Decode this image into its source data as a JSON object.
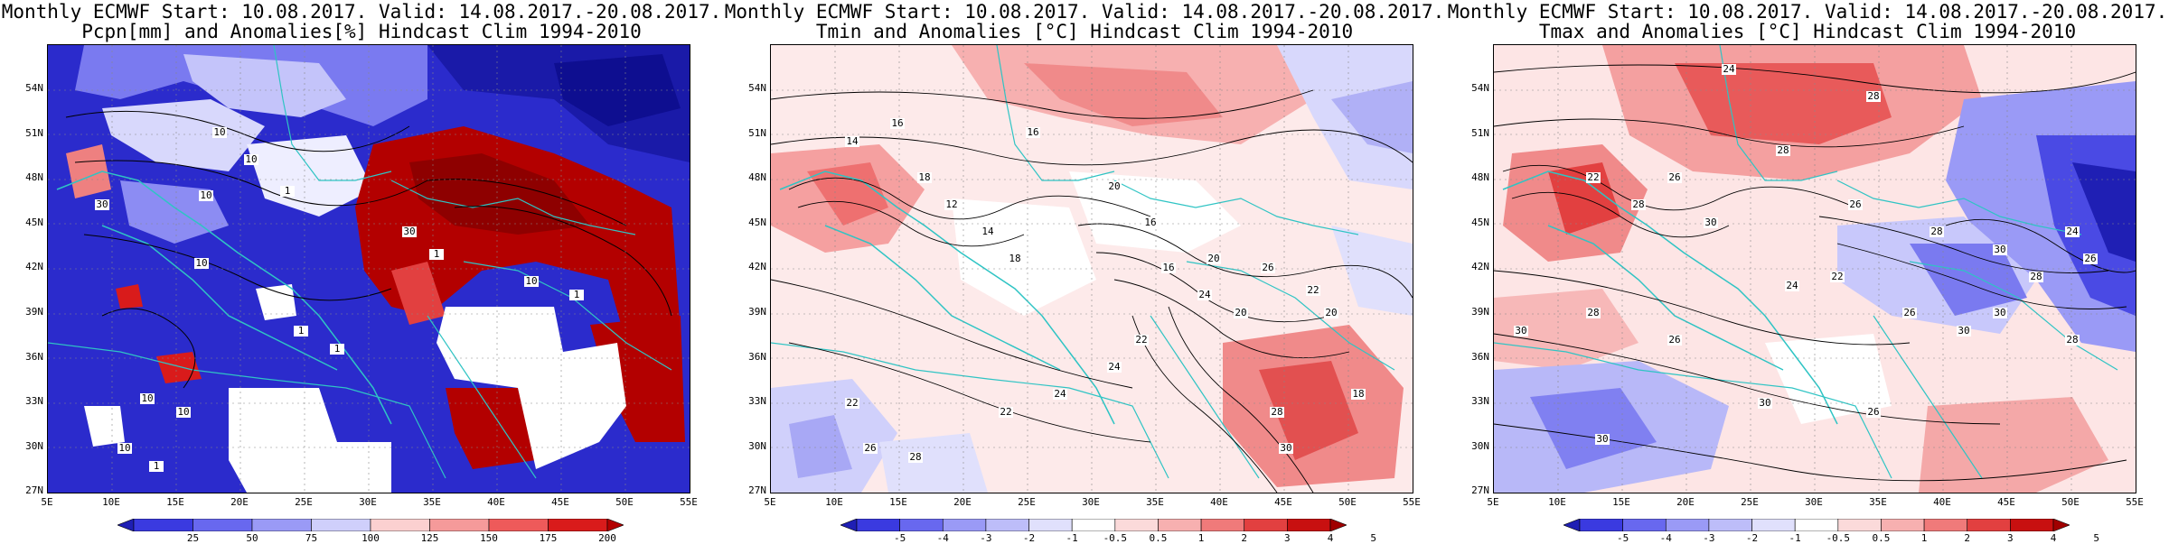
{
  "panels": [
    {
      "id": "pcpn",
      "title_line1": "Monthly ECMWF Start: 10.08.2017. Valid: 14.08.2017.-20.08.2017.",
      "title_line2": "Pcpn[mm] and Anomalies[%] Hindcast Clim 1994-2010",
      "colorbar_labels": [
        "25",
        "50",
        "75",
        "100",
        "125",
        "150",
        "175",
        "200"
      ],
      "colorbar_colors": [
        "#1f1fb4",
        "#3a3ae0",
        "#6868ef",
        "#9a9af6",
        "#cfcffb",
        "#fbd0d0",
        "#f59a9a",
        "#ee5a5a",
        "#d91b1b",
        "#b30000"
      ]
    },
    {
      "id": "tmin",
      "title_line1": "Monthly ECMWF Start: 10.08.2017. Valid: 14.08.2017.-20.08.2017.",
      "title_line2": "Tmin and Anomalies [°C] Hindcast Clim 1994-2010",
      "colorbar_labels": [
        "-5",
        "-4",
        "-3",
        "-2",
        "-1",
        "-0.5",
        "0.5",
        "1",
        "2",
        "3",
        "4",
        "5"
      ],
      "colorbar_colors": [
        "#1f1fb4",
        "#3a3ae0",
        "#6868ef",
        "#9a9af6",
        "#bdbdf9",
        "#e0e0fc",
        "#ffffff",
        "#fbdada",
        "#f7b0b0",
        "#f07a7a",
        "#e24040",
        "#c81010",
        "#a00000"
      ]
    },
    {
      "id": "tmax",
      "title_line1": "Monthly ECMWF Start: 10.08.2017. Valid: 14.08.2017.-20.08.2017.",
      "title_line2": "Tmax and Anomalies [°C] Hindcast Clim 1994-2010",
      "colorbar_labels": [
        "-5",
        "-4",
        "-3",
        "-2",
        "-1",
        "-0.5",
        "0.5",
        "1",
        "2",
        "3",
        "4",
        "5"
      ],
      "colorbar_colors": [
        "#1f1fb4",
        "#3a3ae0",
        "#6868ef",
        "#9a9af6",
        "#bdbdf9",
        "#e0e0fc",
        "#ffffff",
        "#fbdada",
        "#f7b0b0",
        "#f07a7a",
        "#e24040",
        "#c81010",
        "#a00000"
      ]
    }
  ],
  "lat_ticks": [
    "54N",
    "51N",
    "48N",
    "45N",
    "42N",
    "39N",
    "36N",
    "33N",
    "30N",
    "27N"
  ],
  "lon_ticks": [
    "5E",
    "10E",
    "15E",
    "20E",
    "25E",
    "30E",
    "35E",
    "40E",
    "45E",
    "50E",
    "55E"
  ],
  "contour_labels": {
    "pcpn": [
      "10",
      "10",
      "10",
      "30",
      "1",
      "10",
      "30",
      "1",
      "10",
      "1",
      "1",
      "1",
      "10",
      "10",
      "10",
      "1"
    ],
    "tmin": [
      "14",
      "16",
      "16",
      "18",
      "20",
      "12",
      "14",
      "18",
      "16",
      "20",
      "24",
      "20",
      "22",
      "22",
      "24",
      "26",
      "22",
      "28",
      "30",
      "26",
      "28",
      "18",
      "20",
      "16",
      "24",
      "22"
    ],
    "tmax": [
      "24",
      "28",
      "28",
      "26",
      "22",
      "28",
      "30",
      "26",
      "28",
      "30",
      "24",
      "26",
      "28",
      "30",
      "30",
      "26",
      "22",
      "24",
      "30",
      "28",
      "26",
      "26",
      "30",
      "30",
      "28"
    ]
  },
  "colors": {
    "coast": "#2fc4c4",
    "contour": "#000000"
  }
}
